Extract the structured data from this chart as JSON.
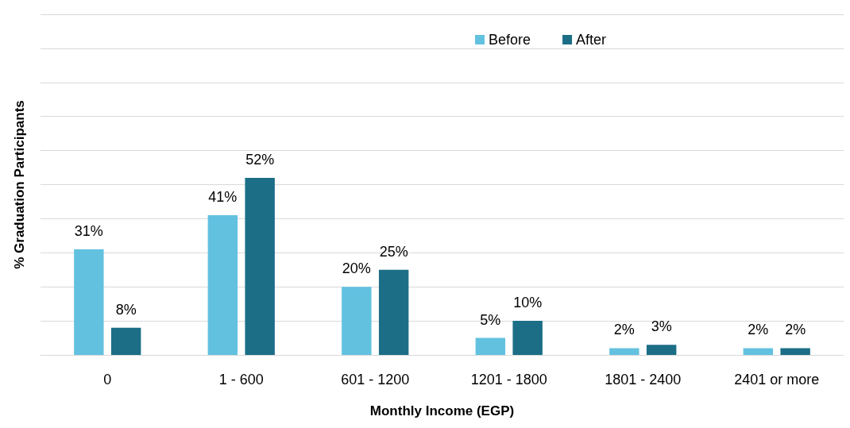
{
  "chart_data": {
    "type": "bar",
    "xlabel": "Monthly Income (EGP)",
    "ylabel": "% Graduation Participants",
    "categories": [
      "0",
      "1 - 600",
      "601 - 1200",
      "1201 - 1800",
      "1801 - 2400",
      "2401 or more"
    ],
    "series": [
      {
        "name": "Before",
        "color": "#63c1e0",
        "values": [
          31,
          41,
          20,
          5,
          2,
          2
        ],
        "value_labels": [
          "31%",
          "41%",
          "20%",
          "5%",
          "2%",
          "2%"
        ]
      },
      {
        "name": "After",
        "color": "#1c6e87",
        "values": [
          8,
          52,
          25,
          10,
          3,
          2
        ],
        "value_labels": [
          "8%",
          "52%",
          "25%",
          "10%",
          "3%",
          "2%"
        ]
      }
    ],
    "ylim": [
      0,
      100
    ],
    "yticks": [
      {
        "value": 0,
        "label": null
      },
      {
        "value": 10,
        "label": null
      },
      {
        "value": 20,
        "label": null
      },
      {
        "value": 30,
        "label": null
      },
      {
        "value": 40,
        "label": null
      },
      {
        "value": 50,
        "label": null
      },
      {
        "value": 60,
        "label": null
      },
      {
        "value": 70,
        "label": null
      },
      {
        "value": 80,
        "label": null
      },
      {
        "value": 90,
        "label": null
      },
      {
        "value": 100,
        "label": null
      }
    ],
    "tick_labels": "x",
    "grid": "y",
    "legend": "top"
  }
}
